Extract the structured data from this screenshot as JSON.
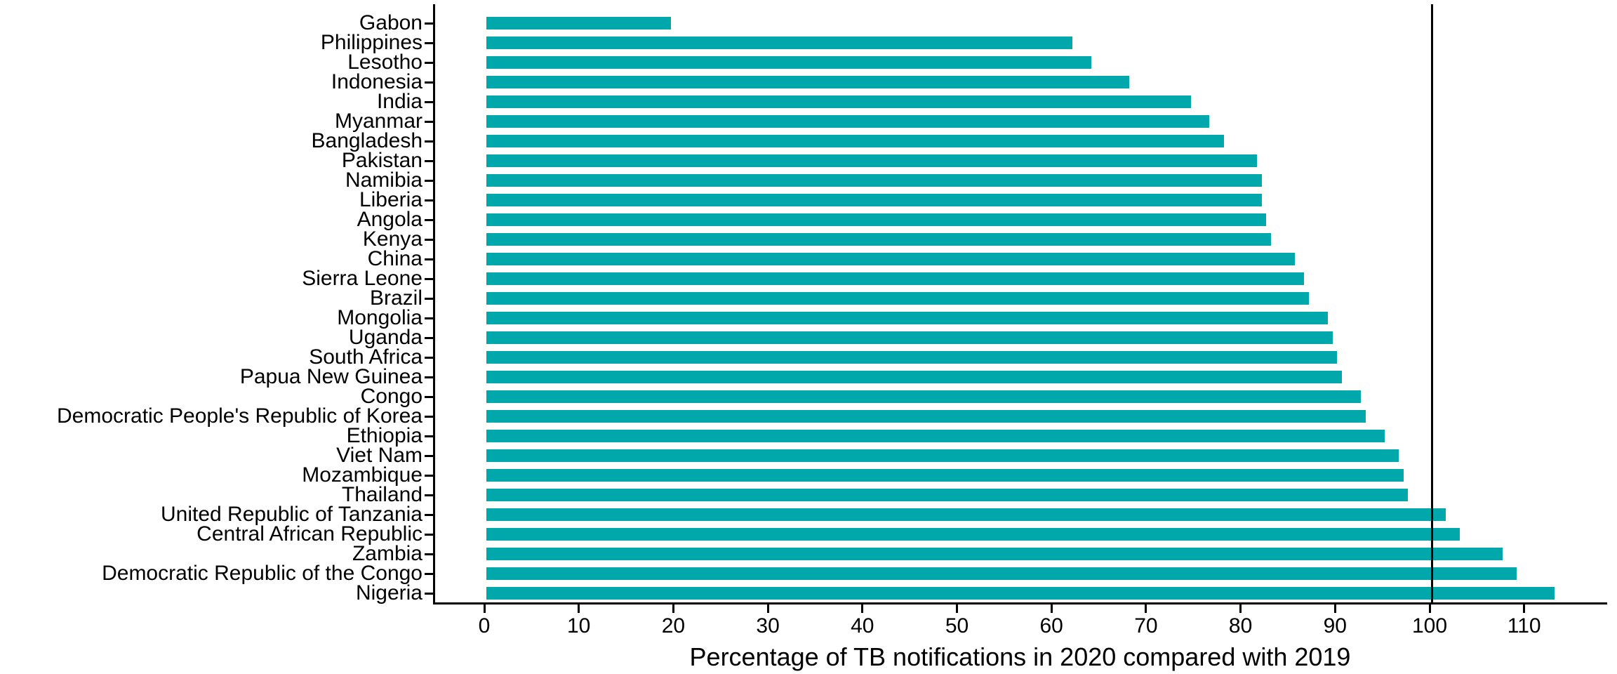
{
  "chart_data": {
    "type": "bar",
    "orientation": "horizontal",
    "title": "",
    "xlabel": "Percentage of TB notifications in 2020 compared with 2019",
    "ylabel": "",
    "categories": [
      "Gabon",
      "Philippines",
      "Lesotho",
      "Indonesia",
      "India",
      "Myanmar",
      "Bangladesh",
      "Pakistan",
      "Namibia",
      "Liberia",
      "Angola",
      "Kenya",
      "China",
      "Sierra Leone",
      "Brazil",
      "Mongolia",
      "Uganda",
      "South Africa",
      "Papua New Guinea",
      "Congo",
      "Democratic People's Republic of Korea",
      "Ethiopia",
      "Viet Nam",
      "Mozambique",
      "Thailand",
      "United Republic of Tanzania",
      "Central African Republic",
      "Zambia",
      "Democratic Republic of the Congo",
      "Nigeria"
    ],
    "values": [
      19.5,
      62,
      64,
      68,
      74.5,
      76.5,
      78,
      81.5,
      82,
      82,
      82.5,
      83,
      85.5,
      86.5,
      87,
      89,
      89.5,
      90,
      90.5,
      92.5,
      93,
      95,
      96.5,
      97,
      97.5,
      101.5,
      103,
      107.5,
      109,
      113
    ],
    "xticks": [
      0,
      10,
      20,
      30,
      40,
      50,
      60,
      70,
      80,
      90,
      100,
      110
    ],
    "xlim": [
      0,
      118
    ],
    "reference_line_x": 100,
    "grid": false,
    "legend": null,
    "bar_color": "#00A8AB",
    "axis_color": "#000000"
  }
}
